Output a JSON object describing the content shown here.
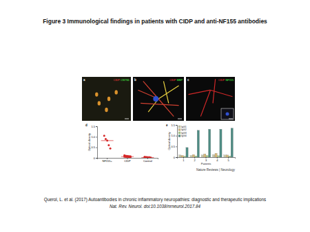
{
  "title": "Figure 3 Immunological findings in patients with CIDP and anti-NF155 antibodies",
  "panels": [
    {
      "letter": "a",
      "labels": [
        {
          "text": "CIDP",
          "color": "#ff3a3a"
        },
        {
          "text": "CNTN1",
          "color": "#4cff4c"
        }
      ]
    },
    {
      "letter": "b",
      "labels": [
        {
          "text": "CIDP",
          "color": "#ff3a3a"
        },
        {
          "text": "MBP",
          "color": "#4cff4c"
        }
      ]
    },
    {
      "letter": "c",
      "labels": [
        {
          "text": "CIDP",
          "color": "#ff3a3a"
        },
        {
          "text": "NF155",
          "color": "#4cff4c"
        }
      ]
    }
  ],
  "credit": "Nature Reviews | Neurology",
  "citation": [
    "Querol, L. et al. (2017) Autoantibodies in chronic inflammatory neuropathies: diagnostic and therapeutic implications",
    "Nat. Rev. Neurol. doi:10.1038/nrneurol.2017.84"
  ],
  "chart_data": [
    {
      "type": "strip",
      "title": "d",
      "ylabel": "Optical density",
      "categories": [
        "NF155+",
        "CIDP",
        "Control"
      ],
      "values": [
        [
          1.05,
          0.9,
          0.82,
          0.6,
          0.45
        ],
        [
          0.12,
          0.1,
          0.09,
          0.08,
          0.07,
          0.06,
          0.05,
          0.05,
          0.04,
          0.03
        ],
        [
          0.05,
          0.04,
          0.03,
          0.03,
          0.02,
          0.02,
          0.02,
          0.01
        ]
      ],
      "medians": [
        0.82,
        0.06,
        0.02
      ],
      "color": "#d62728",
      "ylim": [
        0,
        1.5
      ],
      "yticks": [
        0,
        0.5,
        {
          "value": 1,
          "label": "1.0"
        },
        1.5
      ]
    },
    {
      "type": "bar",
      "title": "e",
      "ylabel": "Optical density",
      "xlabel": "Patients",
      "categories": [
        "1",
        "2",
        "3",
        "4",
        "5"
      ],
      "series": [
        {
          "name": "IgG1",
          "color": "#c9c9a8",
          "values": [
            0.1,
            0.08,
            0.1,
            0.12,
            0.1
          ]
        },
        {
          "name": "IgG2",
          "color": "#d8b878",
          "values": [
            0.08,
            0.12,
            0.15,
            0.18,
            0.1
          ]
        },
        {
          "name": "IgG3",
          "color": "#a8cf8c",
          "values": [
            0.05,
            0.06,
            0.08,
            0.07,
            0.06
          ]
        },
        {
          "name": "IgG4",
          "color": "#4f8c84",
          "values": [
            0.45,
            1.25,
            1.3,
            1.3,
            1.35
          ]
        }
      ],
      "legend": "upper left",
      "ylim": [
        0,
        1.5
      ],
      "yticks": [
        0,
        0.5,
        {
          "value": 1,
          "label": "1.0"
        },
        1.5
      ]
    }
  ]
}
